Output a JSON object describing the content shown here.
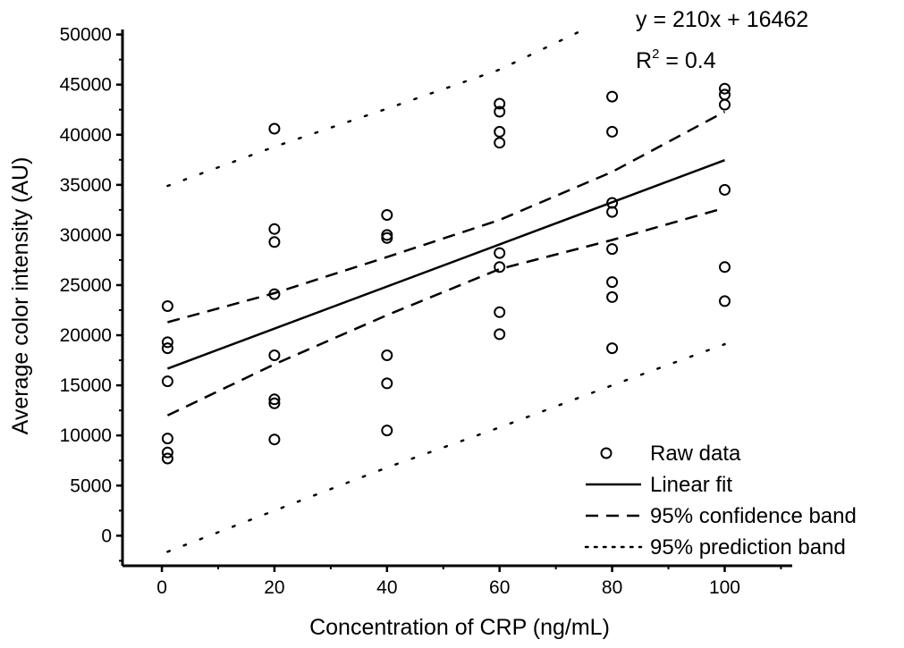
{
  "chart_data": {
    "type": "scatter",
    "xlabel": "Concentration of CRP (ng/mL)",
    "ylabel": "Average color intensity (AU)",
    "xlim": [
      -7,
      112
    ],
    "ylim": [
      -3000,
      50500
    ],
    "xticks": [
      0,
      20,
      40,
      60,
      80,
      100
    ],
    "yticks": [
      0,
      5000,
      10000,
      15000,
      20000,
      25000,
      30000,
      35000,
      40000,
      45000,
      50000
    ],
    "grid": false,
    "legend_position": "bottom-right",
    "annotation": {
      "equation": "y = 210x + 16462",
      "r2_prefix": "R",
      "r2_sup": "2",
      "r2_value": " = 0.4"
    },
    "series": [
      {
        "name": "Raw data",
        "style": "open-circle",
        "points": [
          [
            1,
            22900
          ],
          [
            1,
            19300
          ],
          [
            1,
            18700
          ],
          [
            1,
            15400
          ],
          [
            1,
            9700
          ],
          [
            1,
            8300
          ],
          [
            1,
            7700
          ],
          [
            20,
            40600
          ],
          [
            20,
            30600
          ],
          [
            20,
            29300
          ],
          [
            20,
            24100
          ],
          [
            20,
            18000
          ],
          [
            20,
            13600
          ],
          [
            20,
            13200
          ],
          [
            20,
            9600
          ],
          [
            40,
            32000
          ],
          [
            40,
            30000
          ],
          [
            40,
            29700
          ],
          [
            40,
            18000
          ],
          [
            40,
            15200
          ],
          [
            40,
            10500
          ],
          [
            60,
            43100
          ],
          [
            60,
            42300
          ],
          [
            60,
            40300
          ],
          [
            60,
            39200
          ],
          [
            60,
            28200
          ],
          [
            60,
            26800
          ],
          [
            60,
            22300
          ],
          [
            60,
            20100
          ],
          [
            80,
            43800
          ],
          [
            80,
            40300
          ],
          [
            80,
            33200
          ],
          [
            80,
            32300
          ],
          [
            80,
            28600
          ],
          [
            80,
            25300
          ],
          [
            80,
            23800
          ],
          [
            80,
            18700
          ],
          [
            100,
            44600
          ],
          [
            100,
            44000
          ],
          [
            100,
            43000
          ],
          [
            100,
            34500
          ],
          [
            100,
            26800
          ],
          [
            100,
            23400
          ]
        ]
      },
      {
        "name": "Linear fit",
        "style": "solid",
        "x": [
          1,
          100
        ],
        "y": [
          16672,
          37462
        ]
      },
      {
        "name": "95% confidence band",
        "style": "dashed",
        "upper": {
          "x": [
            1,
            20,
            40,
            60,
            80,
            100
          ],
          "y": [
            21300,
            24200,
            27800,
            31500,
            36300,
            42300
          ]
        },
        "lower": {
          "x": [
            1,
            20,
            40,
            60,
            80,
            100
          ],
          "y": [
            12000,
            17100,
            22000,
            26600,
            29500,
            32700
          ]
        }
      },
      {
        "name": "95% prediction band",
        "style": "dotted",
        "upper": {
          "x": [
            1,
            20,
            40,
            60,
            75
          ],
          "y": [
            34900,
            38800,
            42600,
            46500,
            50500
          ]
        },
        "lower": {
          "x": [
            1,
            20,
            40,
            60,
            80,
            100
          ],
          "y": [
            -1600,
            2500,
            6800,
            10800,
            15000,
            19100
          ]
        }
      }
    ]
  }
}
